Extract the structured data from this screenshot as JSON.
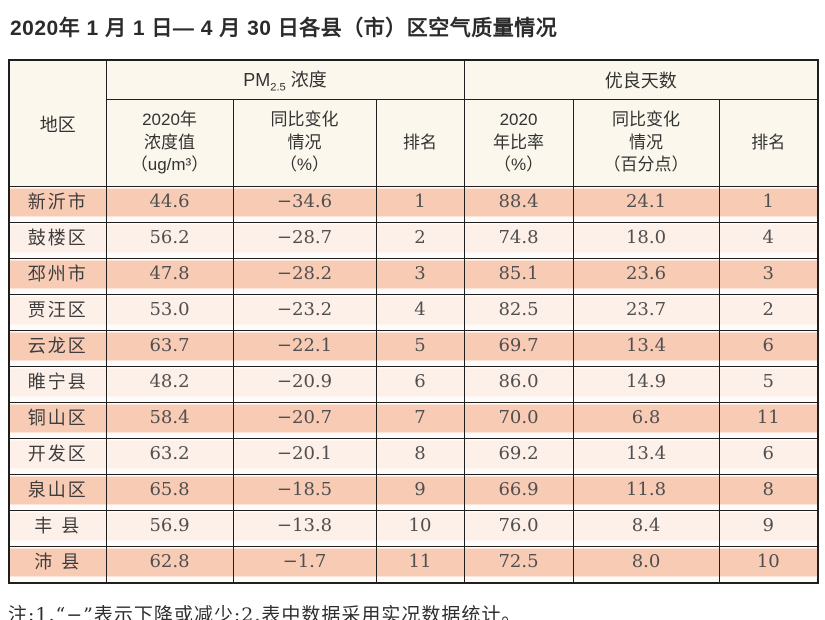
{
  "title": "2020年 1 月 1 日— 4 月 30 日各县（市）区空气质量情况",
  "table": {
    "header": {
      "region": "地区",
      "pm_group": {
        "prefix": "PM",
        "sub": "2.5",
        "suffix": "浓度"
      },
      "good_days": "优良天数",
      "cols": [
        "2020年\n浓度值\n（ug/m³）",
        "同比变化\n情况\n（%）",
        "排名",
        "2020\n年比率\n（%）",
        "同比变化\n情况\n（百分点）",
        "排名"
      ]
    },
    "rows": [
      {
        "region": "新沂市",
        "values": [
          "44.6",
          "−34.6",
          "1",
          "88.4",
          "24.1",
          "1"
        ]
      },
      {
        "region": "鼓楼区",
        "values": [
          "56.2",
          "−28.7",
          "2",
          "74.8",
          "18.0",
          "4"
        ]
      },
      {
        "region": "邳州市",
        "values": [
          "47.8",
          "−28.2",
          "3",
          "85.1",
          "23.6",
          "3"
        ]
      },
      {
        "region": "贾汪区",
        "values": [
          "53.0",
          "−23.2",
          "4",
          "82.5",
          "23.7",
          "2"
        ]
      },
      {
        "region": "云龙区",
        "values": [
          "63.7",
          "−22.1",
          "5",
          "69.7",
          "13.4",
          "6"
        ]
      },
      {
        "region": "睢宁县",
        "values": [
          "48.2",
          "−20.9",
          "6",
          "86.0",
          "14.9",
          "5"
        ]
      },
      {
        "region": "铜山区",
        "values": [
          "58.4",
          "−20.7",
          "7",
          "70.0",
          "6.8",
          "11"
        ]
      },
      {
        "region": "开发区",
        "values": [
          "63.2",
          "−20.1",
          "8",
          "69.2",
          "13.4",
          "6"
        ]
      },
      {
        "region": "泉山区",
        "values": [
          "65.8",
          "−18.5",
          "9",
          "66.9",
          "11.8",
          "8"
        ]
      },
      {
        "region": "丰 县",
        "values": [
          "56.9",
          "−13.8",
          "10",
          "76.0",
          "8.4",
          "9"
        ]
      },
      {
        "region": "沛 县",
        "values": [
          "62.8",
          "−1.7",
          "11",
          "72.5",
          "8.0",
          "10"
        ]
      }
    ]
  },
  "note": "注:1.“−”表示下降或减少;2.表中数据采用实况数据统计。",
  "colors": {
    "stripe_dark": "#f8cbb5",
    "stripe_light": "#fdf0e9",
    "header_bg": "#fbf7ec",
    "border": "#1f1f1f"
  }
}
